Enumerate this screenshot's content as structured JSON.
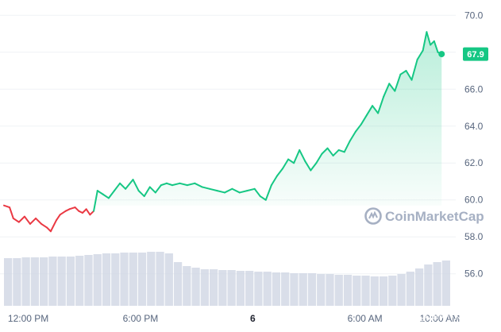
{
  "chart_data": {
    "type": "line",
    "y_axis_side": "right",
    "ylim": [
      55.6,
      70.4
    ],
    "ticks": [
      {
        "label": "70.0",
        "value": 70
      },
      {
        "label": "68.0",
        "value": 68
      },
      {
        "label": "66.0",
        "value": 66
      },
      {
        "label": "64.0",
        "value": 64
      },
      {
        "label": "62.0",
        "value": 62
      },
      {
        "label": "60.0",
        "value": 60
      },
      {
        "label": "58.0",
        "value": 58
      },
      {
        "label": "56.0",
        "value": 56
      }
    ],
    "baseline": 59.7,
    "x_range_hours": [
      0,
      23.9
    ],
    "x_ticks": [
      {
        "label": "12:00 PM",
        "hour": 1.3,
        "bold": false
      },
      {
        "label": "6:00 PM",
        "hour": 7.3,
        "bold": false
      },
      {
        "label": "6",
        "hour": 13.3,
        "bold": true
      },
      {
        "label": "6:00 AM",
        "hour": 19.3,
        "bold": false
      },
      {
        "label": "10:00 AM",
        "hour": 23.3,
        "bold": false
      }
    ],
    "price_series": [
      [
        0.0,
        59.7
      ],
      [
        0.3,
        59.6
      ],
      [
        0.5,
        59.0
      ],
      [
        0.8,
        58.8
      ],
      [
        1.1,
        59.1
      ],
      [
        1.4,
        58.7
      ],
      [
        1.7,
        59.0
      ],
      [
        2.0,
        58.7
      ],
      [
        2.3,
        58.5
      ],
      [
        2.5,
        58.3
      ],
      [
        2.8,
        58.9
      ],
      [
        3.0,
        59.2
      ],
      [
        3.3,
        59.4
      ],
      [
        3.5,
        59.5
      ],
      [
        3.8,
        59.6
      ],
      [
        4.0,
        59.4
      ],
      [
        4.2,
        59.3
      ],
      [
        4.4,
        59.5
      ],
      [
        4.6,
        59.2
      ],
      [
        4.8,
        59.4
      ],
      [
        5.0,
        60.5
      ],
      [
        5.3,
        60.3
      ],
      [
        5.6,
        60.1
      ],
      [
        5.9,
        60.5
      ],
      [
        6.2,
        60.9
      ],
      [
        6.5,
        60.6
      ],
      [
        6.9,
        61.1
      ],
      [
        7.2,
        60.5
      ],
      [
        7.5,
        60.2
      ],
      [
        7.8,
        60.7
      ],
      [
        8.1,
        60.4
      ],
      [
        8.4,
        60.8
      ],
      [
        8.7,
        60.9
      ],
      [
        9.0,
        60.8
      ],
      [
        9.4,
        60.9
      ],
      [
        9.8,
        60.8
      ],
      [
        10.2,
        60.9
      ],
      [
        10.6,
        60.7
      ],
      [
        11.0,
        60.6
      ],
      [
        11.4,
        60.5
      ],
      [
        11.8,
        60.4
      ],
      [
        12.2,
        60.6
      ],
      [
        12.6,
        60.4
      ],
      [
        13.0,
        60.5
      ],
      [
        13.4,
        60.6
      ],
      [
        13.7,
        60.2
      ],
      [
        14.0,
        60.0
      ],
      [
        14.3,
        60.8
      ],
      [
        14.6,
        61.3
      ],
      [
        14.9,
        61.7
      ],
      [
        15.2,
        62.2
      ],
      [
        15.5,
        62.0
      ],
      [
        15.8,
        62.7
      ],
      [
        16.1,
        62.1
      ],
      [
        16.4,
        61.6
      ],
      [
        16.7,
        62.0
      ],
      [
        17.0,
        62.5
      ],
      [
        17.3,
        62.8
      ],
      [
        17.6,
        62.4
      ],
      [
        17.9,
        62.7
      ],
      [
        18.2,
        62.6
      ],
      [
        18.5,
        63.2
      ],
      [
        18.8,
        63.7
      ],
      [
        19.1,
        64.1
      ],
      [
        19.4,
        64.6
      ],
      [
        19.7,
        65.1
      ],
      [
        20.0,
        64.7
      ],
      [
        20.3,
        65.6
      ],
      [
        20.6,
        66.3
      ],
      [
        20.9,
        65.9
      ],
      [
        21.2,
        66.8
      ],
      [
        21.5,
        67.0
      ],
      [
        21.8,
        66.5
      ],
      [
        22.1,
        67.6
      ],
      [
        22.4,
        68.1
      ],
      [
        22.6,
        69.1
      ],
      [
        22.8,
        68.4
      ],
      [
        23.0,
        68.6
      ],
      [
        23.2,
        68.0
      ],
      [
        23.4,
        67.9
      ]
    ],
    "current_price_label": "67.9",
    "volume_series": [
      0.6,
      0.6,
      0.61,
      0.61,
      0.61,
      0.62,
      0.62,
      0.62,
      0.63,
      0.64,
      0.65,
      0.66,
      0.66,
      0.67,
      0.67,
      0.67,
      0.68,
      0.68,
      0.66,
      0.55,
      0.5,
      0.48,
      0.46,
      0.46,
      0.45,
      0.45,
      0.44,
      0.44,
      0.43,
      0.43,
      0.42,
      0.42,
      0.41,
      0.41,
      0.41,
      0.4,
      0.4,
      0.39,
      0.39,
      0.38,
      0.38,
      0.37,
      0.37,
      0.38,
      0.4,
      0.43,
      0.47,
      0.52,
      0.55,
      0.57
    ],
    "colors": {
      "up": "#16c784",
      "down": "#ea3943",
      "axis_text": "#58667e",
      "grid": "#eff2f5",
      "volume": "#cfd6e4",
      "watermark": "#a6b0c3"
    }
  },
  "watermark": {
    "text": "CoinMarketCap",
    "icon": "coinmarketcap-logo-icon"
  },
  "overlay_text": "知乎 @泽畔东篱"
}
